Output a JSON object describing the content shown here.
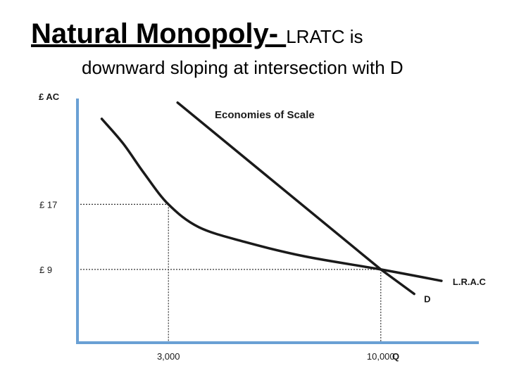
{
  "slide": {
    "title_bold": "Natural Monopoly- ",
    "title_rest": "LRATC is",
    "title_line2": "downward sloping at intersection with D"
  },
  "chart_data": {
    "type": "line",
    "title": "Economies of Scale",
    "ylabel": "£ AC",
    "xlabel": "Q",
    "x_ticks": [
      {
        "label": "3,000",
        "value": 3000
      },
      {
        "label": "10,000",
        "value": 10000
      }
    ],
    "y_ticks": [
      {
        "label": "£ 17",
        "value": 17
      },
      {
        "label": "£ 9",
        "value": 9
      }
    ],
    "xlim": [
      0,
      13000
    ],
    "ylim": [
      0,
      30
    ],
    "grid": false,
    "series": [
      {
        "name": "L.R.A.C",
        "color": "#1a1a1a",
        "points": [
          [
            800,
            27.5
          ],
          [
            1500,
            24.5
          ],
          [
            2200,
            20.8
          ],
          [
            3000,
            17
          ],
          [
            4000,
            14.2
          ],
          [
            5500,
            12.4
          ],
          [
            7500,
            10.6
          ],
          [
            10000,
            9
          ],
          [
            12000,
            7.6
          ]
        ]
      },
      {
        "name": "D",
        "color": "#1a1a1a",
        "points": [
          [
            3300,
            29.5
          ],
          [
            10000,
            9
          ],
          [
            11100,
            6
          ]
        ]
      }
    ],
    "reference_lines": [
      {
        "x": 3000,
        "y": 17
      },
      {
        "x": 10000,
        "y": 9
      }
    ],
    "axis_color": "#6aa0d4"
  }
}
